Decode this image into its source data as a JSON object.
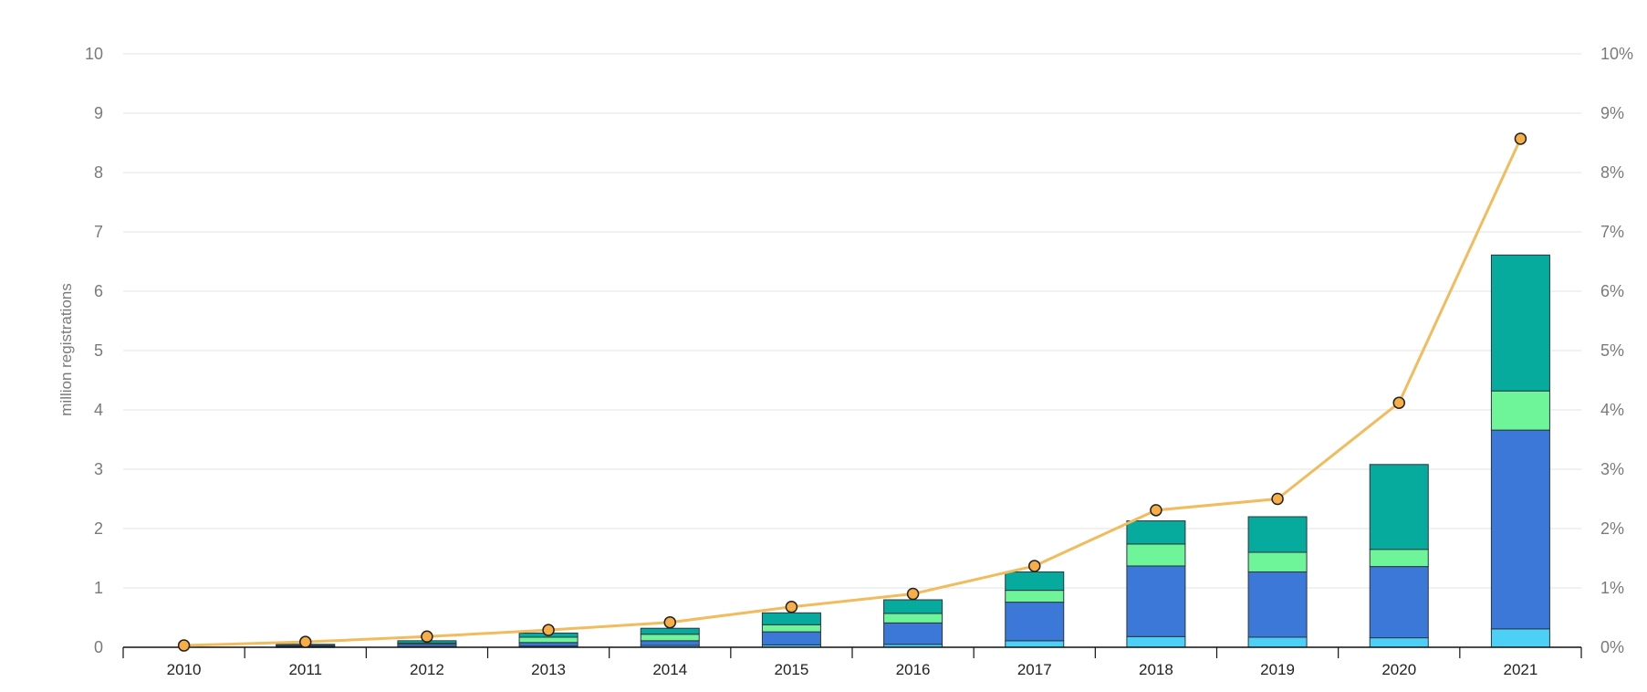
{
  "chart_data": {
    "type": "bar",
    "stacked": true,
    "categories": [
      "2010",
      "2011",
      "2012",
      "2013",
      "2014",
      "2015",
      "2016",
      "2017",
      "2018",
      "2019",
      "2020",
      "2021"
    ],
    "series": [
      {
        "color": "#4dd0f5",
        "values": [
          0.0,
          0.005,
          0.01,
          0.02,
          0.03,
          0.04,
          0.05,
          0.11,
          0.18,
          0.17,
          0.16,
          0.31
        ]
      },
      {
        "color": "#3c78d8",
        "values": [
          0.0,
          0.02,
          0.04,
          0.06,
          0.08,
          0.22,
          0.36,
          0.65,
          1.19,
          1.1,
          1.2,
          3.35
        ]
      },
      {
        "color": "#6ef59a",
        "values": [
          0.0,
          0.005,
          0.02,
          0.09,
          0.11,
          0.12,
          0.16,
          0.2,
          0.37,
          0.33,
          0.29,
          0.66
        ]
      },
      {
        "color": "#07ab9e",
        "values": [
          0.0,
          0.02,
          0.04,
          0.07,
          0.1,
          0.2,
          0.23,
          0.31,
          0.39,
          0.6,
          1.43,
          2.29
        ]
      }
    ],
    "line": {
      "axis": "right",
      "color": "#f0bc5e",
      "marker_fill": "#f7ae46",
      "values": [
        0.03,
        0.09,
        0.18,
        0.29,
        0.42,
        0.68,
        0.9,
        1.37,
        2.31,
        2.5,
        4.12,
        8.57
      ]
    },
    "ylabel": "million registrations",
    "ylim": [
      0,
      10
    ],
    "yticks": [
      "0",
      "1",
      "2",
      "3",
      "4",
      "5",
      "6",
      "7",
      "8",
      "9",
      "10"
    ],
    "y2lim": [
      0,
      10
    ],
    "y2ticks": [
      "0%",
      "1%",
      "2%",
      "3%",
      "4%",
      "5%",
      "6%",
      "7%",
      "8%",
      "9%",
      "10%"
    ],
    "grid": true,
    "legend": "none"
  }
}
